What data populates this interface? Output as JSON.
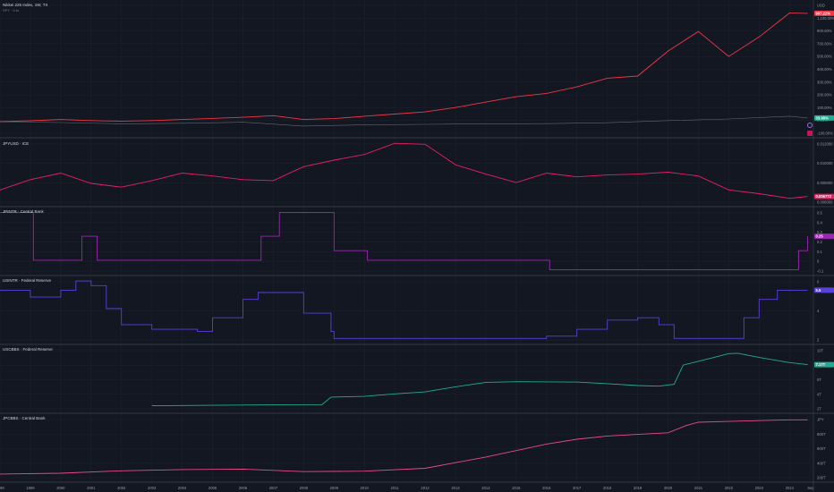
{
  "header": {
    "title": "Nikkei 225 Index, 1W, TX",
    "subtitle": "SPY · 0 to"
  },
  "colors": {
    "background": "#131722",
    "grid": "#1e222d",
    "separator": "#434651",
    "nikkei": "#f23645",
    "spy": "#787b86",
    "jpyusd": "#e91e63",
    "jpinterest": "#9c27b0",
    "usinterest": "#5b3fd9",
    "usm2": "#22ab94",
    "jpm2": "#e84a8a"
  },
  "chart_data": [
    {
      "type": "line",
      "title": "Nikkei 225 Index, 1W, TX",
      "y_axis_labels": [
        "USD",
        "1,100.00%",
        "900.00%",
        "700.00%",
        "500.00%",
        "400.00%",
        "300.00%",
        "200.00%",
        "100.00%",
        "0.00%",
        "-100.00%"
      ],
      "last_value_label": "997.22%",
      "secondary_label": "33.98%",
      "series": [
        {
          "name": "Nikkei 225 Index",
          "x": [
            1998,
            1999,
            2000,
            2001,
            2002,
            2003,
            2004,
            2005,
            2006,
            2007,
            2008,
            2009,
            2010,
            2011,
            2012,
            2013,
            2014,
            2015,
            2016,
            2017,
            2018,
            2019,
            2020,
            2021,
            2022,
            2023,
            2024,
            2024.6
          ],
          "values": [
            0,
            8,
            20,
            10,
            5,
            10,
            20,
            30,
            40,
            55,
            20,
            28,
            50,
            70,
            90,
            130,
            180,
            230,
            260,
            320,
            400,
            420,
            650,
            830,
            600,
            780,
            1000,
            997
          ]
        },
        {
          "name": "SPY",
          "x": [
            1998,
            2000,
            2002,
            2004,
            2006,
            2008,
            2010,
            2012,
            2014,
            2016,
            2018,
            2020,
            2022,
            2024,
            2024.6
          ],
          "values": [
            0,
            -8,
            -20,
            -15,
            -5,
            -40,
            -30,
            -25,
            -20,
            -18,
            -10,
            10,
            25,
            50,
            34
          ]
        }
      ]
    },
    {
      "type": "line",
      "title": "JPYUSD · ICE",
      "y_axis_labels": [
        "0.012000",
        "0.010000",
        "0.008000",
        "0.006000"
      ],
      "last_value_label": "0.006772",
      "series": [
        {
          "name": "JPYUSD",
          "x": [
            1998,
            1999,
            2000,
            2001,
            2002,
            2003,
            2004,
            2005,
            2006,
            2007,
            2008,
            2009,
            2010,
            2011,
            2012,
            2013,
            2014,
            2015,
            2016,
            2017,
            2018,
            2019,
            2020,
            2021,
            2022,
            2023,
            2024,
            2024.6
          ],
          "values": [
            0.0075,
            0.0086,
            0.0093,
            0.0082,
            0.0078,
            0.0085,
            0.0093,
            0.009,
            0.0086,
            0.0085,
            0.01,
            0.0107,
            0.0113,
            0.0125,
            0.0124,
            0.0102,
            0.0092,
            0.0083,
            0.0093,
            0.0089,
            0.0091,
            0.0092,
            0.0094,
            0.009,
            0.0075,
            0.0071,
            0.0066,
            0.0068
          ]
        }
      ]
    },
    {
      "type": "line",
      "title": "JPINTR · Central Bank",
      "y_axis_labels": [
        "0.5",
        "0.4",
        "0.3",
        "0.2",
        "0.1",
        "0",
        "-0.1"
      ],
      "last_value_label": "0.25",
      "series": [
        {
          "name": "Japan Interest Rate",
          "x": [
            1998,
            1998.8,
            1999.1,
            2000.6,
            2000.7,
            2001.0,
            2001.2,
            2006.5,
            2006.6,
            2007.1,
            2007.2,
            2008.9,
            2009.0,
            2010.0,
            2010.1,
            2016.0,
            2016.1,
            2024.2,
            2024.3,
            2024.6
          ],
          "values": [
            0.5,
            0.5,
            0,
            0,
            0.25,
            0.25,
            0,
            0,
            0.25,
            0.25,
            0.5,
            0.5,
            0.1,
            0.1,
            0,
            0,
            -0.1,
            -0.1,
            0.1,
            0.25
          ]
        }
      ]
    },
    {
      "type": "line",
      "title": "USINTR · Federal Reserve",
      "y_axis_labels": [
        "6",
        "4",
        "2"
      ],
      "last_value_label": "5.5",
      "series": [
        {
          "name": "US Interest Rate",
          "x": [
            1998,
            1999,
            2000,
            2000.5,
            2001,
            2001.5,
            2002,
            2003,
            2004.5,
            2005,
            2006,
            2006.5,
            2007.5,
            2008,
            2008.9,
            2009,
            2015.9,
            2016,
            2017,
            2018,
            2019,
            2019.7,
            2020.2,
            2021,
            2022,
            2022.5,
            2023,
            2023.6,
            2024.6
          ],
          "values": [
            5.5,
            4.75,
            5.5,
            6.5,
            6.0,
            3.5,
            1.75,
            1.25,
            1.0,
            2.5,
            4.5,
            5.25,
            5.25,
            3.0,
            1.0,
            0.25,
            0.25,
            0.5,
            1.25,
            2.25,
            2.5,
            1.75,
            0.25,
            0.25,
            0.25,
            2.5,
            4.5,
            5.5,
            5.5
          ]
        }
      ]
    },
    {
      "type": "line",
      "title": "USCBBS · Federal Reserve",
      "y_axis_labels": [
        "10T",
        "8.7T",
        "6T",
        "4T",
        "2T"
      ],
      "last_value_label": "7.17T",
      "series": [
        {
          "name": "US Central Bank Balance Sheet",
          "x": [
            2003,
            2005,
            2007,
            2008.6,
            2008.9,
            2010,
            2011,
            2012,
            2013,
            2014,
            2015,
            2017,
            2018,
            2019,
            2019.7,
            2020.2,
            2020.5,
            2021,
            2022,
            2022.3,
            2023,
            2024,
            2024.6
          ],
          "values": [
            0.73,
            0.8,
            0.87,
            0.9,
            2.1,
            2.2,
            2.6,
            2.9,
            3.7,
            4.4,
            4.5,
            4.45,
            4.2,
            3.9,
            3.8,
            4.1,
            7.1,
            7.7,
            8.9,
            8.95,
            8.3,
            7.5,
            7.17
          ]
        }
      ]
    },
    {
      "type": "line",
      "title": "JPCBBS · Central Bank",
      "y_axis_labels": [
        "JPY",
        "800T",
        "600T",
        "400T",
        "200T"
      ],
      "series": [
        {
          "name": "Japan Central Bank Balance Sheet",
          "x": [
            1998,
            2000,
            2002,
            2004,
            2006,
            2008,
            2010,
            2012,
            2013,
            2014,
            2015,
            2016,
            2017,
            2018,
            2019,
            2020,
            2020.6,
            2021,
            2022,
            2023,
            2024,
            2024.6
          ],
          "values": [
            90,
            100,
            130,
            145,
            150,
            120,
            125,
            160,
            230,
            300,
            380,
            460,
            520,
            560,
            580,
            600,
            690,
            730,
            740,
            750,
            760,
            760
          ]
        }
      ]
    }
  ],
  "time_axis": [
    "1998",
    "1999",
    "2000",
    "2001",
    "2002",
    "2003",
    "2004",
    "2005",
    "2006",
    "2007",
    "2008",
    "2009",
    "2010",
    "2011",
    "2012",
    "2013",
    "2014",
    "2015",
    "2016",
    "2017",
    "2018",
    "2019",
    "2020",
    "2021",
    "2022",
    "2023",
    "2024",
    "Sep"
  ],
  "time_range": [
    1998,
    2024.7
  ]
}
